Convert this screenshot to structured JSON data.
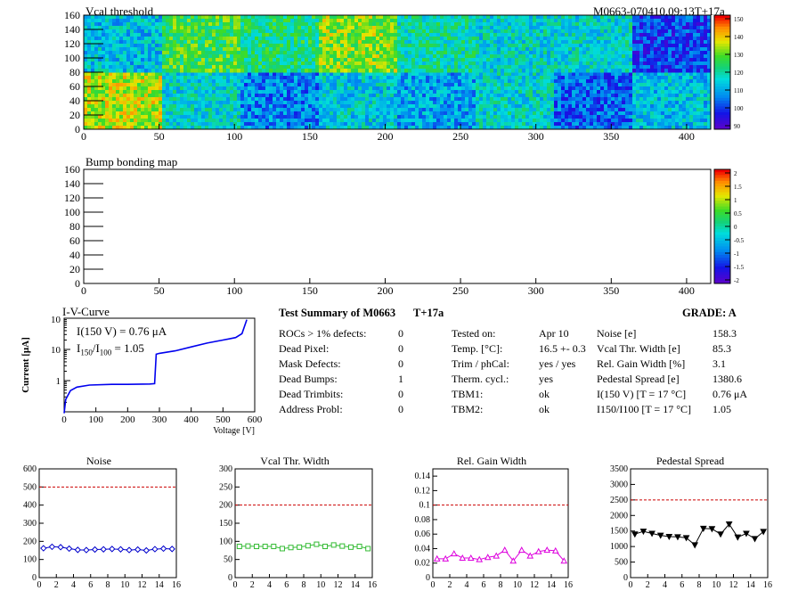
{
  "maps": {
    "threshold": {
      "title": "Vcal threshold",
      "tag": "M0663-070410.09:13T+17a",
      "y_ticks": [
        "0",
        "20",
        "40",
        "60",
        "80",
        "100",
        "120",
        "140",
        "160"
      ],
      "x_ticks": [
        "0",
        "50",
        "100",
        "150",
        "200",
        "250",
        "300",
        "350",
        "400"
      ],
      "z_ticks": [
        "150",
        "140",
        "130",
        "120",
        "110",
        "100",
        "90"
      ]
    },
    "bump": {
      "title": "Bump bonding map",
      "y_ticks": [
        "0",
        "20",
        "40",
        "60",
        "80",
        "100",
        "120",
        "140",
        "160"
      ],
      "x_ticks": [
        "0",
        "50",
        "100",
        "150",
        "200",
        "250",
        "300",
        "350",
        "400"
      ],
      "z_ticks": [
        "2",
        "1.5",
        "1",
        "0.5",
        "0",
        "-0.5",
        "-1",
        "-1.5",
        "-2"
      ]
    }
  },
  "iv": {
    "title": "I-V-Curve",
    "annot1": "I(150 V) = 0.76 μA",
    "annot2_base": "I",
    "annot2_sub1": "150",
    "annot2_mid": "/I",
    "annot2_sub2": "100",
    "annot2_val": "=  1.05",
    "ylabel": "Current [μA]",
    "xlabel": "Voltage [V]",
    "x_ticks": [
      "0",
      "100",
      "200",
      "300",
      "400",
      "500",
      "600"
    ],
    "y_ticks": [
      "1",
      "10"
    ],
    "y_top_base": "10",
    "y_top_exp": "2"
  },
  "summary": {
    "title": "Test Summary of M0663",
    "temp_tag": "T+17a",
    "grade": "GRADE:  A",
    "col1": [
      {
        "label": "ROCs > 1% defects:",
        "value": "0"
      },
      {
        "label": "Dead Pixel:",
        "value": "0"
      },
      {
        "label": "Mask Defects:",
        "value": "0"
      },
      {
        "label": "Dead Bumps:",
        "value": "1"
      },
      {
        "label": "Dead Trimbits:",
        "value": "0"
      },
      {
        "label": "Address Probl:",
        "value": "0"
      }
    ],
    "col2": [
      {
        "label": "Tested on:",
        "value": "Apr 10"
      },
      {
        "label": "Temp. [°C]:",
        "value": "16.5 +- 0.3"
      },
      {
        "label": "Trim / phCal:",
        "value": "yes / yes"
      },
      {
        "label": "Therm. cycl.:",
        "value": "yes"
      },
      {
        "label": "TBM1:",
        "value": "ok"
      },
      {
        "label": "TBM2:",
        "value": "ok"
      }
    ],
    "col3": [
      {
        "label": "Noise [e]",
        "value": "158.3"
      },
      {
        "label": "Vcal Thr. Width [e]",
        "value": "85.3"
      },
      {
        "label": "Rel. Gain Width [%]",
        "value": "3.1"
      },
      {
        "label": "Pedestal Spread [e]",
        "value": "1380.6"
      },
      {
        "label": "I(150 V) [T = 17 °C]",
        "value": "0.76 μA"
      },
      {
        "label": "I150/I100  [T = 17 °C]",
        "value": "1.05"
      }
    ]
  },
  "colors": {
    "noise": "#0000cc",
    "vcal": "#33bb33",
    "gain": "#dd00dd",
    "pedestal": "#000000",
    "limit": "#cc0000",
    "iv": "#0000ee"
  },
  "chart_data": [
    {
      "type": "line",
      "title": "Noise",
      "x": [
        0,
        1,
        2,
        3,
        4,
        5,
        6,
        7,
        8,
        9,
        10,
        11,
        12,
        13,
        14,
        15
      ],
      "values": [
        162,
        170,
        168,
        160,
        153,
        152,
        155,
        156,
        158,
        156,
        152,
        155,
        150,
        157,
        160,
        158
      ],
      "limit": 500,
      "xlim": [
        0,
        16
      ],
      "ylim": [
        0,
        600
      ],
      "y_ticks": [
        "0",
        "100",
        "200",
        "300",
        "400",
        "500",
        "600"
      ],
      "x_ticks": [
        "0",
        "2",
        "4",
        "6",
        "8",
        "10",
        "12",
        "14",
        "16"
      ]
    },
    {
      "type": "line",
      "title": "Vcal Thr. Width",
      "x": [
        0,
        1,
        2,
        3,
        4,
        5,
        6,
        7,
        8,
        9,
        10,
        11,
        12,
        13,
        14,
        15
      ],
      "values": [
        86,
        87,
        86,
        86,
        86,
        80,
        83,
        84,
        88,
        92,
        86,
        90,
        87,
        84,
        86,
        80
      ],
      "limit": 200,
      "xlim": [
        0,
        16
      ],
      "ylim": [
        0,
        300
      ],
      "y_ticks": [
        "0",
        "50",
        "100",
        "150",
        "200",
        "250",
        "300"
      ],
      "x_ticks": [
        "0",
        "2",
        "4",
        "6",
        "8",
        "10",
        "12",
        "14",
        "16"
      ]
    },
    {
      "type": "line",
      "title": "Rel. Gain Width",
      "x": [
        0,
        1,
        2,
        3,
        4,
        5,
        6,
        7,
        8,
        9,
        10,
        11,
        12,
        13,
        14,
        15
      ],
      "values": [
        0.026,
        0.026,
        0.033,
        0.027,
        0.027,
        0.025,
        0.028,
        0.03,
        0.038,
        0.023,
        0.038,
        0.03,
        0.036,
        0.038,
        0.037,
        0.023
      ],
      "limit": 0.1,
      "xlim": [
        0,
        16
      ],
      "ylim": [
        0,
        0.15
      ],
      "y_ticks": [
        "0",
        "0.02",
        "0.04",
        "0.06",
        "0.08",
        "0.1",
        "0.12",
        "0.14"
      ],
      "x_ticks": [
        "0",
        "2",
        "4",
        "6",
        "8",
        "10",
        "12",
        "14",
        "16"
      ]
    },
    {
      "type": "line",
      "title": "Pedestal Spread",
      "x": [
        0,
        1,
        2,
        3,
        4,
        5,
        6,
        7,
        8,
        9,
        10,
        11,
        12,
        13,
        14,
        15
      ],
      "values": [
        1400,
        1490,
        1420,
        1360,
        1320,
        1310,
        1280,
        1050,
        1580,
        1570,
        1400,
        1720,
        1300,
        1420,
        1250,
        1480
      ],
      "limit": 2500,
      "xlim": [
        0,
        16
      ],
      "ylim": [
        0,
        3500
      ],
      "y_ticks": [
        "0",
        "500",
        "1000",
        "1500",
        "2000",
        "2500",
        "3000",
        "3500"
      ],
      "x_ticks": [
        "0",
        "2",
        "4",
        "6",
        "8",
        "10",
        "12",
        "14",
        "16"
      ]
    },
    {
      "type": "line",
      "title": "I-V-Curve",
      "xlabel": "Voltage [V]",
      "ylabel": "Current [μA]",
      "yscale": "log",
      "x": [
        0,
        5,
        20,
        40,
        80,
        150,
        200,
        270,
        285,
        290,
        300,
        350,
        400,
        450,
        500,
        540,
        560,
        575
      ],
      "values": [
        0.09,
        0.25,
        0.48,
        0.62,
        0.72,
        0.76,
        0.76,
        0.78,
        0.8,
        7,
        7.5,
        9,
        12,
        16,
        20,
        24,
        32,
        90
      ],
      "xlim": [
        0,
        600
      ],
      "ylim": [
        0.1,
        100
      ]
    }
  ]
}
